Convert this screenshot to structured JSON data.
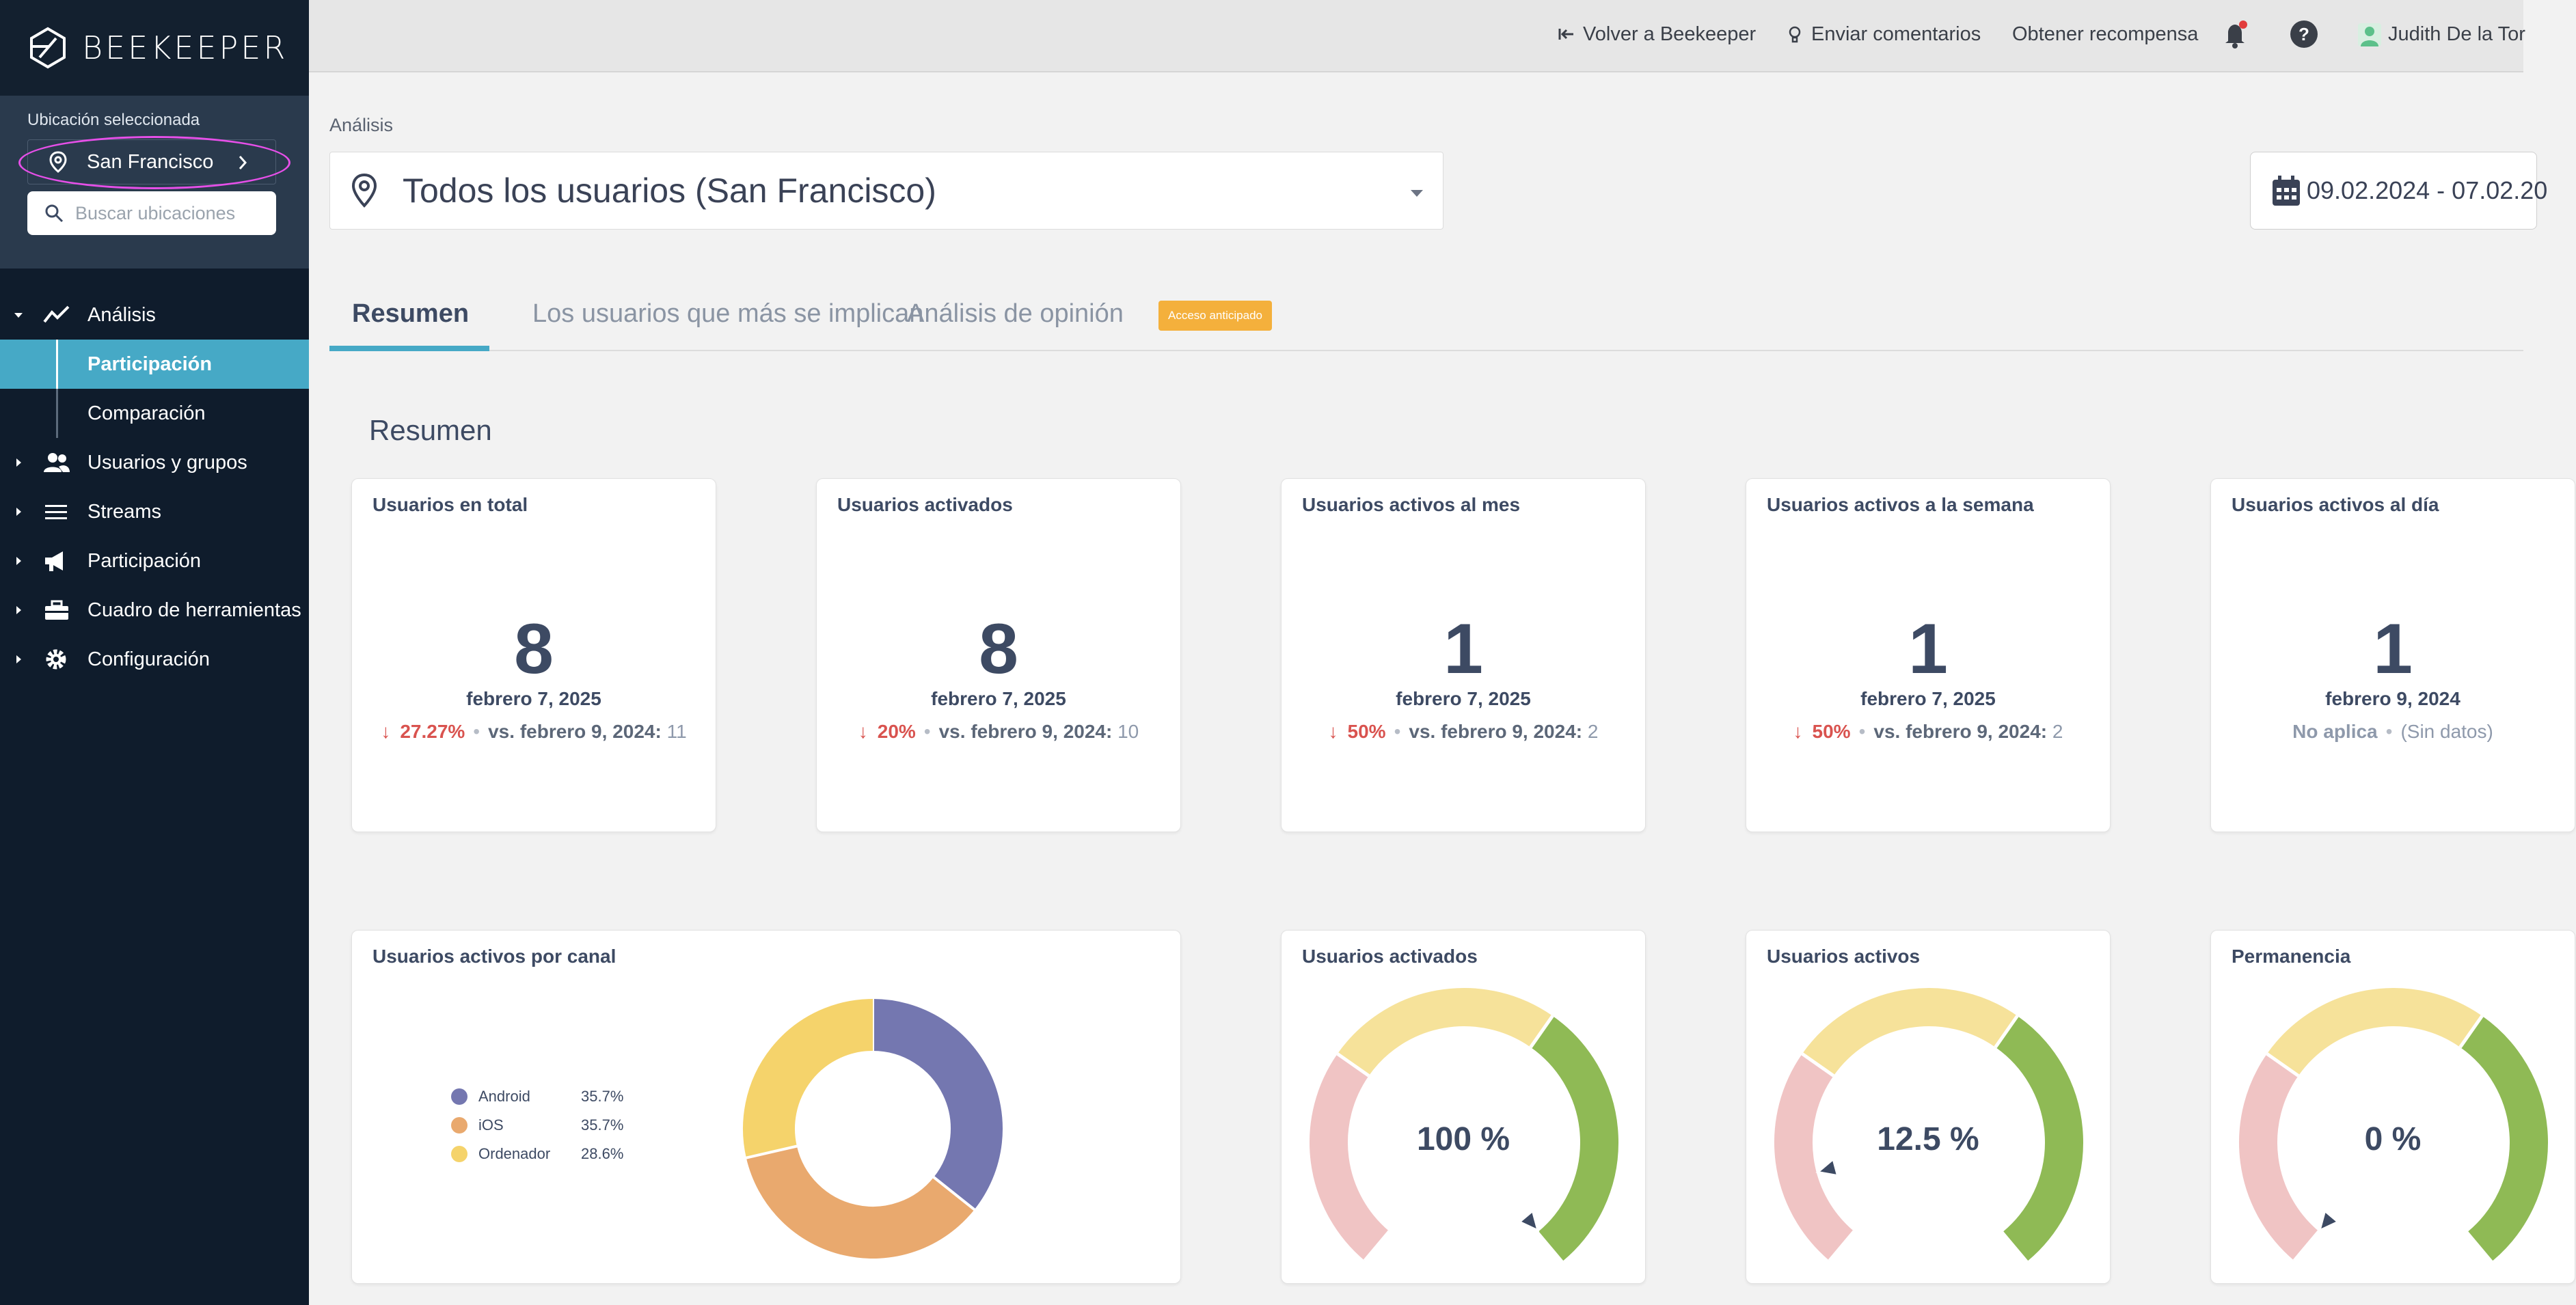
{
  "app": {
    "name": "BEEKEEPER"
  },
  "location_panel": {
    "label": "Ubicación seleccionada",
    "selected": "San Francisco",
    "search_placeholder": "Buscar ubicaciones"
  },
  "sidebar": {
    "items": [
      {
        "label": "Análisis",
        "icon": "trend-icon",
        "expanded": true
      },
      {
        "label": "Participación",
        "sub": true,
        "active": true
      },
      {
        "label": "Comparación",
        "sub": true
      },
      {
        "label": "Usuarios y grupos",
        "icon": "users-icon"
      },
      {
        "label": "Streams",
        "icon": "streams-icon"
      },
      {
        "label": "Participación",
        "icon": "megaphone-icon"
      },
      {
        "label": "Cuadro de herramientas",
        "icon": "toolbox-icon"
      },
      {
        "label": "Configuración",
        "icon": "gear-icon"
      }
    ]
  },
  "topbar": {
    "back": "Volver a Beekeeper",
    "feedback": "Enviar comentarios",
    "reward": "Obtener recompensa",
    "user": "Judith De la Tor"
  },
  "page": {
    "breadcrumb": "Análisis",
    "user_filter": "Todos los usuarios (San Francisco)",
    "date_range": "09.02.2024 - 07.02.20",
    "tabs": [
      "Resumen",
      "Los usuarios que más se implican",
      "Análisis de opinión"
    ],
    "badge": "Acceso anticipado",
    "section_title": "Resumen"
  },
  "stat_cards": [
    {
      "title": "Usuarios en total",
      "value": "8",
      "date": "febrero 7, 2025",
      "delta": "27.27%",
      "vs": "vs. febrero 9, 2024:",
      "vs_value": "11"
    },
    {
      "title": "Usuarios activados",
      "value": "8",
      "date": "febrero 7, 2025",
      "delta": "20%",
      "vs": "vs. febrero 9, 2024:",
      "vs_value": "10"
    },
    {
      "title": "Usuarios activos al mes",
      "value": "1",
      "date": "febrero 7, 2025",
      "delta": "50%",
      "vs": "vs. febrero 9, 2024:",
      "vs_value": "2"
    },
    {
      "title": "Usuarios activos a la semana",
      "value": "1",
      "date": "febrero 7, 2025",
      "delta": "50%",
      "vs": "vs. febrero 9, 2024:",
      "vs_value": "2"
    },
    {
      "title": "Usuarios activos al día",
      "value": "1",
      "date": "febrero 9, 2024",
      "na": "No aplica",
      "no_data": "(Sin datos)"
    }
  ],
  "channel_card": {
    "title": "Usuarios activos por canal",
    "legend": [
      {
        "name": "Android",
        "value": "35.7%",
        "pct": 35.7,
        "color": "#7477b0"
      },
      {
        "name": "iOS",
        "value": "35.7%",
        "pct": 35.7,
        "color": "#e9a96e"
      },
      {
        "name": "Ordenador",
        "value": "28.6%",
        "pct": 28.6,
        "color": "#f5d36b"
      }
    ]
  },
  "gauges": [
    {
      "title": "Usuarios activados",
      "value": "100 %",
      "pct": 100
    },
    {
      "title": "Usuarios activos",
      "value": "12.5 %",
      "pct": 12.5
    },
    {
      "title": "Permanencia",
      "value": "0 %",
      "pct": 0
    }
  ],
  "colors": {
    "sidebar_bg": "#0f1c2c",
    "accent": "#46a9c6",
    "badge": "#f4b03c",
    "negative": "#d9534f",
    "gauge_low": "#f0c4c4",
    "gauge_mid": "#f6e29a",
    "gauge_high": "#8fba55"
  }
}
